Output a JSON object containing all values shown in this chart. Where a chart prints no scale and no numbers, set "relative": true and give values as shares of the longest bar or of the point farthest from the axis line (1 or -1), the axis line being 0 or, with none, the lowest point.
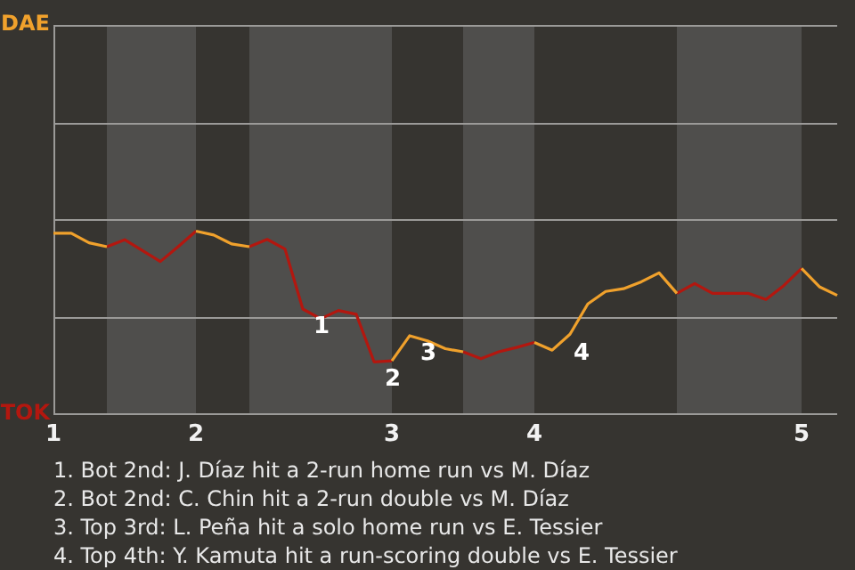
{
  "chart_data": {
    "type": "line",
    "relative": true,
    "categories": [
      "1",
      null,
      null,
      null,
      null,
      null,
      null,
      null,
      "2",
      null,
      null,
      null,
      null,
      null,
      null,
      null,
      null,
      null,
      null,
      "3",
      null,
      null,
      null,
      null,
      null,
      null,
      null,
      "4",
      null,
      null,
      null,
      null,
      null,
      null,
      null,
      null,
      null,
      null,
      null,
      null,
      null,
      null,
      "5",
      null,
      null
    ],
    "legend": "left",
    "ref_lines": [
      {
        "axis": "y",
        "value": 0.532,
        "color": "#9b9a98"
      },
      {
        "axis": "y",
        "value": 1.064,
        "color": "#9b9a98"
      },
      {
        "axis": "y",
        "value": 1.596,
        "color": "#9b9a98"
      },
      {
        "axis": "y",
        "value": 2.128,
        "color": "#9b9a98"
      }
    ],
    "marker": "none",
    "line_style": "solid",
    "series": [
      {
        "name": "DAE",
        "color": "#f0a12c",
        "values": [
          0.989,
          0.989,
          0.936,
          0.915,
          null,
          null,
          null,
          null,
          1,
          0.979,
          0.93,
          0.915,
          null,
          null,
          null,
          null,
          null,
          null,
          null,
          0.291,
          0.428,
          0.4,
          0.357,
          0.34,
          null,
          null,
          null,
          0.391,
          0.349,
          0.436,
          0.602,
          0.67,
          0.685,
          0.723,
          0.772,
          0.66,
          null,
          null,
          null,
          null,
          null,
          null,
          0.796,
          0.696,
          0.649
        ]
      },
      {
        "name": "TOK",
        "color": "#b3170f",
        "values": [
          null,
          null,
          null,
          0.915,
          0.953,
          0.894,
          0.834,
          0.915,
          1,
          null,
          null,
          0.915,
          0.955,
          0.902,
          0.574,
          0.521,
          0.566,
          0.545,
          0.285,
          0.291,
          null,
          null,
          null,
          0.34,
          0.302,
          0.34,
          0.364,
          0.391,
          null,
          null,
          null,
          null,
          null,
          null,
          null,
          0.66,
          0.713,
          0.66,
          0.66,
          0.66,
          0.626,
          0.702,
          0.796,
          null,
          null
        ]
      }
    ],
    "annotations": [
      {
        "text": "1",
        "y": 0.574
      },
      {
        "text": "2",
        "y": 0.285
      },
      {
        "text": "3",
        "y": 0.428
      },
      {
        "text": "4",
        "y": 0.436
      },
      "1. Bot 2nd: J. Díaz hit a 2-run home run vs M. Díaz",
      "2. Bot 2nd: C. Chin hit a 2-run double vs M. Díaz",
      "3. Top 3rd: L. Peña hit a solo home run vs E. Tessier",
      "4. Top 4th: Y. Kamuta hit a run-scoring double vs E. Tessier"
    ]
  }
}
